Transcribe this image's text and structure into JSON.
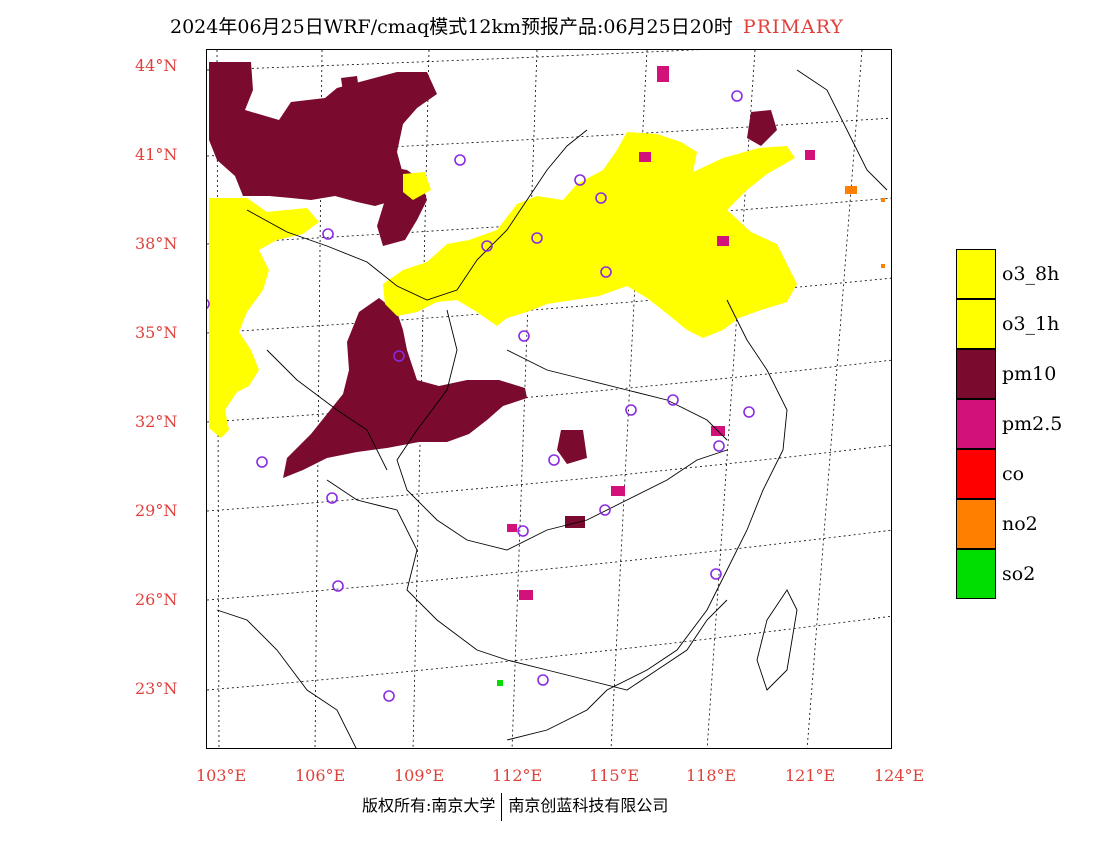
{
  "title": {
    "main": "2024年06月25日WRF/cmaq模式12km预报产品:06月25日20时",
    "tag": "PRIMARY"
  },
  "axes": {
    "lat_labels": [
      "44°N",
      "41°N",
      "38°N",
      "35°N",
      "32°N",
      "29°N",
      "26°N",
      "23°N"
    ],
    "lon_labels": [
      "103°E",
      "106°E",
      "109°E",
      "112°E",
      "115°E",
      "118°E",
      "121°E",
      "124°E"
    ]
  },
  "legend": {
    "items": [
      {
        "label": "o3_8h",
        "color": "#ffff00"
      },
      {
        "label": "o3_1h",
        "color": "#ffff00"
      },
      {
        "label": "pm10",
        "color": "#7a0a2e"
      },
      {
        "label": "pm2.5",
        "color": "#d2127a"
      },
      {
        "label": "co",
        "color": "#ff0000"
      },
      {
        "label": "no2",
        "color": "#ff7f00"
      },
      {
        "label": "so2",
        "color": "#00dd00"
      }
    ]
  },
  "footer": {
    "left": "版权所有:南京大学",
    "right": "南京创蓝科技有限公司"
  },
  "colors": {
    "accent": "#e0403a",
    "o3": "#ffff00",
    "pm10": "#7a0a2e",
    "pm25": "#d2127a",
    "no2": "#ff7f00",
    "so2": "#00dd00",
    "station": "#8a2be2"
  }
}
